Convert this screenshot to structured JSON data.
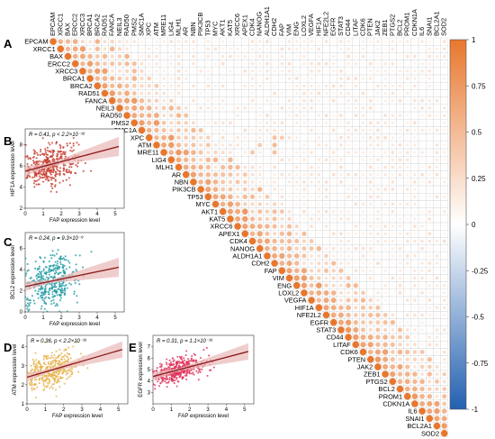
{
  "panel_labels": [
    "A",
    "B",
    "C",
    "D",
    "E"
  ],
  "colors": {
    "positive": "#e8772e",
    "negative": "#2360b0",
    "grid": "#d9d9d9",
    "scatter_B": "#c63a2a",
    "scatter_C": "#1f9aa3",
    "scatter_D": "#e6b24a",
    "scatter_E": "#e0305a",
    "fit_line": "#8b1a1a",
    "ci_band": "#e9b8b8"
  },
  "chart_data": [
    {
      "type": "heatmap",
      "panel": "A",
      "genes": [
        "EPCAM",
        "XRCC1",
        "BAX",
        "ERCC2",
        "XRCC3",
        "BRCA1",
        "BRCA2",
        "RAD51",
        "FANCA",
        "NEIL3",
        "RAD50",
        "PMS2",
        "SMC1A",
        "XPC",
        "ATM",
        "MRE11",
        "LIG4",
        "MLH1",
        "AR",
        "NBN",
        "PIK3CB",
        "TP53",
        "MYC",
        "AKT1",
        "KAT5",
        "XRCC6",
        "APEX1",
        "CDK4",
        "NANOG",
        "ALDH1A1",
        "CDH2",
        "FAP",
        "VIM",
        "ENG",
        "LOXL2",
        "VEGFA",
        "HIF1A",
        "NFE2L2",
        "EGFR",
        "STAT3",
        "CD44",
        "LITAF",
        "CDK6",
        "PTEN",
        "JAK2",
        "ZEB1",
        "PTGS2",
        "BCL2",
        "PROM1",
        "CDKN1A",
        "IL6",
        "SNAI1",
        "BCL2A1",
        "SOD2"
      ],
      "colorbar": {
        "ticks": [
          1,
          0.75,
          0.5,
          0.25,
          0,
          -0.25,
          -0.5,
          -0.75,
          -1
        ],
        "tick_labels": [
          "1",
          "0.75",
          "0.5",
          "0.25",
          "0",
          "-0.25",
          "-0.5",
          "-0.75",
          "-1"
        ],
        "range": [
          -1,
          1
        ]
      },
      "cells": [
        [
          1,
          0,
          0.22
        ],
        [
          1,
          5,
          0.2
        ],
        [
          2,
          6,
          0.4
        ],
        [
          2,
          9,
          0.35
        ],
        [
          3,
          8,
          0.45
        ],
        [
          5,
          7,
          0.55
        ],
        [
          6,
          8,
          0.5
        ],
        [
          7,
          9,
          0.45
        ],
        [
          8,
          12,
          0.5
        ],
        [
          9,
          13,
          0.55
        ],
        [
          10,
          14,
          0.6
        ],
        [
          12,
          15,
          0.45
        ],
        [
          14,
          17,
          0.5
        ],
        [
          16,
          19,
          0.45
        ],
        [
          18,
          21,
          0.5
        ],
        [
          20,
          23,
          0.4
        ],
        [
          22,
          25,
          0.55
        ],
        [
          24,
          27,
          0.5
        ],
        [
          26,
          29,
          0.45
        ],
        [
          28,
          31,
          0.4
        ],
        [
          30,
          33,
          0.5
        ],
        [
          32,
          35,
          0.45
        ],
        [
          34,
          38,
          0.55
        ],
        [
          37,
          40,
          0.5
        ],
        [
          39,
          42,
          0.45
        ],
        [
          41,
          44,
          0.5
        ],
        [
          43,
          46,
          0.45
        ],
        [
          45,
          48,
          0.55
        ],
        [
          47,
          50,
          0.5
        ],
        [
          36,
          38,
          0.6
        ],
        [
          36,
          40,
          0.55
        ],
        [
          37,
          39,
          0.62
        ],
        [
          38,
          41,
          0.5
        ],
        [
          36,
          44,
          0.45
        ],
        [
          35,
          36,
          0.5
        ],
        [
          33,
          35,
          0.45
        ],
        [
          13,
          30,
          0.45
        ],
        [
          14,
          30,
          0.5
        ],
        [
          15,
          30,
          0.45
        ],
        [
          13,
          31,
          0.4
        ],
        [
          14,
          28,
          0.4
        ],
        [
          15,
          27,
          0.42
        ],
        [
          40,
          29,
          -0.25
        ],
        [
          41,
          28,
          -0.2
        ],
        [
          44,
          29,
          -0.22
        ],
        [
          48,
          28,
          -0.15
        ],
        [
          50,
          27,
          -0.18
        ],
        [
          45,
          30,
          -0.12
        ],
        [
          12,
          3,
          -0.15
        ],
        [
          14,
          5,
          -0.12
        ],
        [
          30,
          4,
          -0.12
        ]
      ]
    },
    {
      "type": "scatter",
      "panel": "B",
      "stat": "R = 0.41, p < 2.2×10⁻¹⁶",
      "xlabel": "FAP expression level",
      "ylabel": "HIF1A expression level",
      "xlim": [
        0,
        5.5
      ],
      "ylim": [
        2,
        9.5
      ],
      "xticks": [
        0,
        1,
        2,
        3,
        4,
        5
      ],
      "yticks": [
        2,
        4,
        6,
        8
      ],
      "fit": {
        "intercept": 5.5,
        "slope": 0.45
      },
      "cloud": {
        "n": 380,
        "x_mean": 1.4,
        "x_sd": 0.75,
        "resid_sd": 0.9
      }
    },
    {
      "type": "scatter",
      "panel": "C",
      "stat": "R = 0.24, p = 9.3×10⁻⁹",
      "xlabel": "FAP expression level",
      "ylabel": "BCL2 expression level",
      "xlim": [
        0,
        5.5
      ],
      "ylim": [
        0,
        7.5
      ],
      "xticks": [
        0,
        1,
        2,
        3,
        4,
        5
      ],
      "yticks": [
        0,
        2,
        4,
        6
      ],
      "fit": {
        "intercept": 2.4,
        "slope": 0.35
      },
      "cloud": {
        "n": 380,
        "x_mean": 1.4,
        "x_sd": 0.75,
        "resid_sd": 1.2
      }
    },
    {
      "type": "scatter",
      "panel": "D",
      "stat": "R = 0.36, p < 2.2×10⁻¹⁶",
      "xlabel": "FAP expression level",
      "ylabel": "ATM expression level",
      "xlim": [
        0,
        5.5
      ],
      "ylim": [
        1,
        4.6
      ],
      "xticks": [
        0,
        1,
        2,
        3,
        4,
        5
      ],
      "yticks": [
        1,
        2,
        3,
        4
      ],
      "fit": {
        "intercept": 2.4,
        "slope": 0.28
      },
      "cloud": {
        "n": 380,
        "x_mean": 1.4,
        "x_sd": 0.75,
        "resid_sd": 0.45
      }
    },
    {
      "type": "scatter",
      "panel": "E",
      "stat": "R = 0.31, p = 1.1×10⁻¹⁶",
      "xlabel": "FAP expression level",
      "ylabel": "EGFR expression level",
      "xlim": [
        0,
        5.5
      ],
      "ylim": [
        2,
        8
      ],
      "xticks": [
        0,
        1,
        2,
        3,
        4,
        5
      ],
      "yticks": [
        3,
        4,
        5,
        6,
        7
      ],
      "fit": {
        "intercept": 4.4,
        "slope": 0.42
      },
      "cloud": {
        "n": 380,
        "x_mean": 1.4,
        "x_sd": 0.75,
        "resid_sd": 0.55
      }
    }
  ]
}
